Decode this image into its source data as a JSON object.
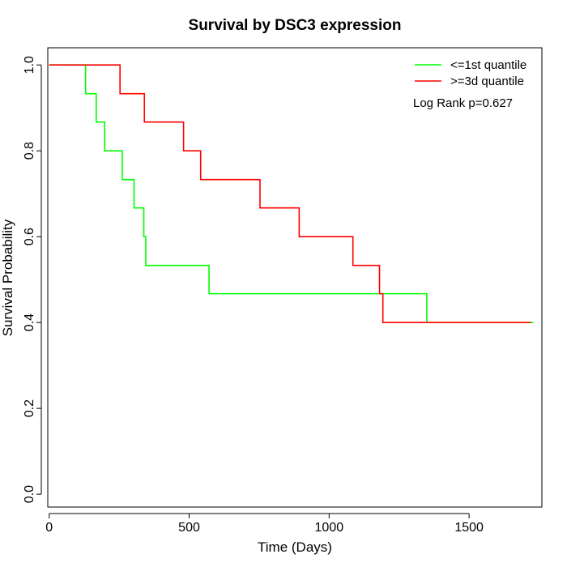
{
  "chart_data": {
    "type": "line",
    "title": "Survival by DSC3 expression",
    "xlabel": "Time (Days)",
    "ylabel": "Survival Probability",
    "xlim": [
      -5,
      1760
    ],
    "ylim": [
      -0.03,
      1.04
    ],
    "xticks": [
      0,
      500,
      1000,
      1500
    ],
    "yticks": [
      0.0,
      0.2,
      0.4,
      0.6,
      0.8,
      1.0
    ],
    "xtick_labels": [
      "0",
      "500",
      "1000",
      "1500"
    ],
    "ytick_labels": [
      "0.0",
      "0.2",
      "0.4",
      "0.6",
      "0.8",
      "1.0"
    ],
    "grid": false,
    "legend_position": "top-right",
    "annotation": "Log Rank p=0.627",
    "series": [
      {
        "name": "<=1st quantile",
        "color": "#00ff00",
        "step": true,
        "x": [
          0,
          130,
          168,
          198,
          261,
          303,
          338,
          345,
          571,
          1349,
          1730
        ],
        "y": [
          1.0,
          0.933,
          0.867,
          0.8,
          0.733,
          0.667,
          0.6,
          0.533,
          0.467,
          0.4,
          0.4
        ]
      },
      {
        "name": ">=3d quantile",
        "color": "#ff0000",
        "step": true,
        "x": [
          0,
          253,
          340,
          480,
          541,
          753,
          893,
          1085,
          1180,
          1192,
          1720
        ],
        "y": [
          1.0,
          0.933,
          0.867,
          0.8,
          0.733,
          0.667,
          0.6,
          0.533,
          0.467,
          0.4,
          0.4
        ]
      }
    ]
  }
}
